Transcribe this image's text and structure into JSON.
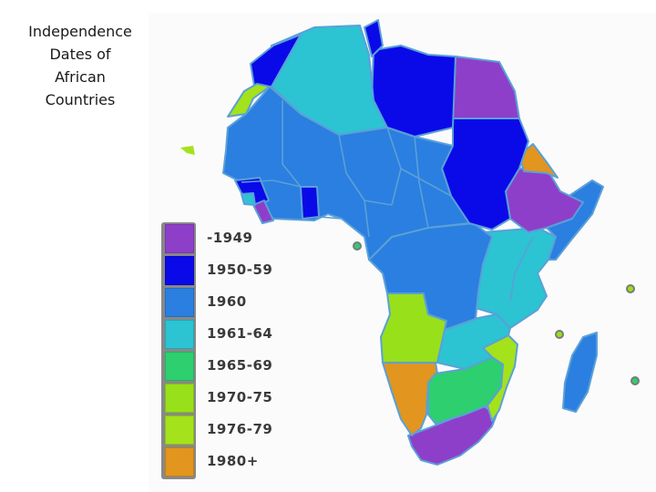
{
  "title_lines": [
    "Independence",
    "Dates of",
    "African",
    "Countries"
  ],
  "legend": [
    {
      "label": "-1949",
      "color": "#8e3fc9"
    },
    {
      "label": "1950-59",
      "color": "#0a0ae8"
    },
    {
      "label": "1960",
      "color": "#2a7fe0"
    },
    {
      "label": "1961-64",
      "color": "#2cc3d3"
    },
    {
      "label": "1965-69",
      "color": "#2dcf6f"
    },
    {
      "label": "1970-75",
      "color": "#98e01a"
    },
    {
      "label": "1976-79",
      "color": "#a4e21b"
    },
    {
      "label": "1980+",
      "color": "#e2951f"
    }
  ],
  "colors": {
    "border": "#5aa0d8",
    "outline": "#4a6fa0"
  }
}
